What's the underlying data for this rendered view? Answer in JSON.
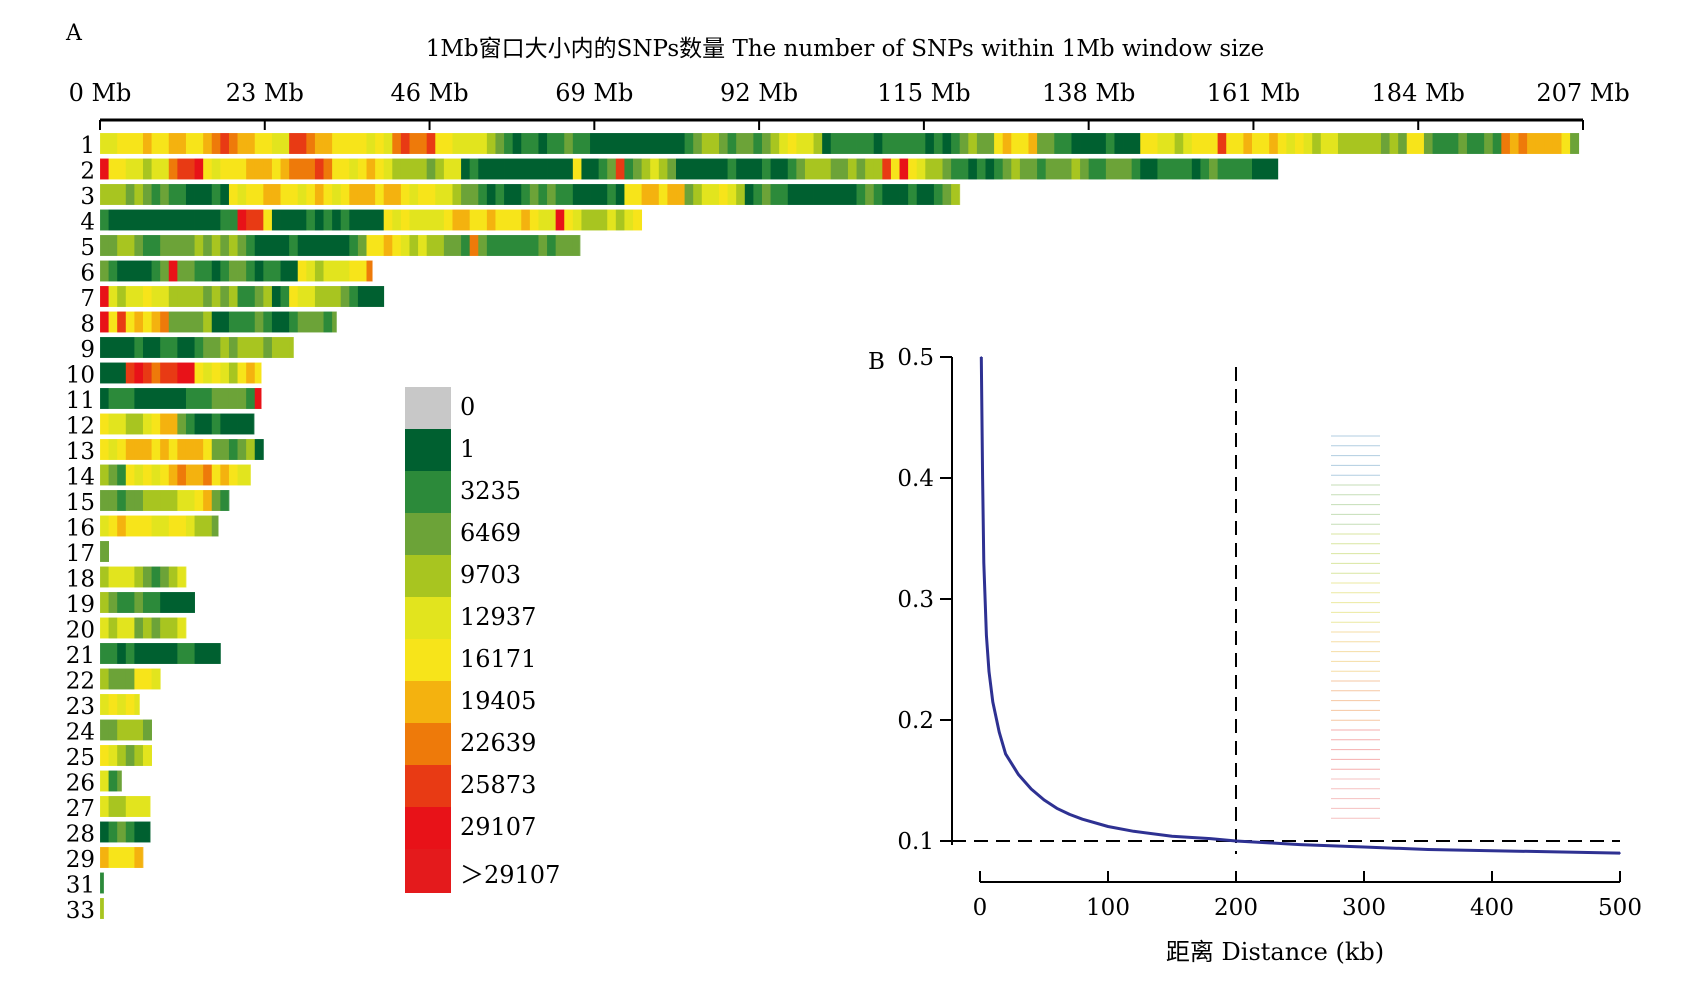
{
  "panel_a": {
    "letter": "A",
    "title": "1Mb窗口大小内的SNPs数量 The number of SNPs within 1Mb window size",
    "chart_data": {
      "type": "heatmap",
      "title": "1Mb窗口大小内的SNPs数量 The number of SNPs within 1Mb window size",
      "x_unit": "Mb",
      "xlim": [
        0,
        207
      ],
      "tick_labels": [
        "0 Mb",
        "23 Mb",
        "46 Mb",
        "69 Mb",
        "92 Mb",
        "115 Mb",
        "138 Mb",
        "161 Mb",
        "184 Mb",
        "207 Mb"
      ],
      "tick_values": [
        0,
        23,
        46,
        69,
        92,
        115,
        138,
        161,
        184,
        207
      ],
      "chromosomes": [
        {
          "label": "1",
          "length_mb": 206.5
        },
        {
          "label": "2",
          "length_mb": 164.5
        },
        {
          "label": "3",
          "length_mb": 120
        },
        {
          "label": "4",
          "length_mb": 76
        },
        {
          "label": "5",
          "length_mb": 67
        },
        {
          "label": "6",
          "length_mb": 38
        },
        {
          "label": "7",
          "length_mb": 40
        },
        {
          "label": "8",
          "length_mb": 33
        },
        {
          "label": "9",
          "length_mb": 27
        },
        {
          "label": "10",
          "length_mb": 22.5
        },
        {
          "label": "11",
          "length_mb": 22.5
        },
        {
          "label": "12",
          "length_mb": 21.5
        },
        {
          "label": "13",
          "length_mb": 23
        },
        {
          "label": "14",
          "length_mb": 21
        },
        {
          "label": "15",
          "length_mb": 18
        },
        {
          "label": "16",
          "length_mb": 16.5
        },
        {
          "label": "17",
          "length_mb": 1.5
        },
        {
          "label": "18",
          "length_mb": 12
        },
        {
          "label": "19",
          "length_mb": 13.5
        },
        {
          "label": "20",
          "length_mb": 12
        },
        {
          "label": "21",
          "length_mb": 17
        },
        {
          "label": "22",
          "length_mb": 8.5
        },
        {
          "label": "23",
          "length_mb": 5.5
        },
        {
          "label": "24",
          "length_mb": 7.5
        },
        {
          "label": "25",
          "length_mb": 7.5
        },
        {
          "label": "26",
          "length_mb": 3
        },
        {
          "label": "27",
          "length_mb": 7
        },
        {
          "label": "28",
          "length_mb": 7
        },
        {
          "label": "29",
          "length_mb": 6
        },
        {
          "label": "31",
          "length_mb": 0.5
        },
        {
          "label": "33",
          "length_mb": 0.5
        }
      ],
      "legend": {
        "labels": [
          "0",
          "1",
          "3235",
          "6469",
          "9703",
          "12937",
          "16171",
          "19405",
          "22639",
          "25873",
          "29107",
          "＞29107"
        ],
        "colors": [
          "#c8c8c8",
          "#006030",
          "#2c8a3a",
          "#6ca338",
          "#a8c520",
          "#e2e41e",
          "#f7e41a",
          "#f4b20f",
          "#ee7a0a",
          "#e83a14",
          "#e81218",
          "#e41a1c"
        ]
      },
      "cell_color_order": [
        "#006030",
        "#2c8a3a",
        "#6ca338",
        "#a8c520",
        "#e2e41e",
        "#f7e41a",
        "#f4b20f",
        "#ee7a0a",
        "#e83a14",
        "#e81218"
      ]
    }
  },
  "panel_b": {
    "letter": "B",
    "xlabel": "距离 Distance (kb)",
    "chart_data": {
      "type": "line",
      "xlabel": "距离 Distance (kb)",
      "ylabel": "",
      "xlim": [
        0,
        500
      ],
      "ylim": [
        0.1,
        0.5
      ],
      "x_ticks": [
        0,
        100,
        200,
        300,
        400,
        500
      ],
      "y_ticks": [
        0.1,
        0.2,
        0.3,
        0.4,
        0.5
      ],
      "x_tick_labels": [
        "0",
        "100",
        "200",
        "300",
        "400",
        "500"
      ],
      "y_tick_labels": [
        "0.1",
        "0.2",
        "0.3",
        "0.4",
        "0.5"
      ],
      "reference_lines": {
        "x": 200,
        "y": 0.1
      },
      "series": [
        {
          "color": "#2e3192",
          "points": [
            [
              1,
              0.5
            ],
            [
              2,
              0.4
            ],
            [
              3,
              0.33
            ],
            [
              5,
              0.27
            ],
            [
              7,
              0.24
            ],
            [
              10,
              0.215
            ],
            [
              15,
              0.19
            ],
            [
              20,
              0.172
            ],
            [
              30,
              0.155
            ],
            [
              40,
              0.143
            ],
            [
              50,
              0.134
            ],
            [
              60,
              0.127
            ],
            [
              70,
              0.122
            ],
            [
              80,
              0.118
            ],
            [
              100,
              0.112
            ],
            [
              120,
              0.108
            ],
            [
              150,
              0.104
            ],
            [
              180,
              0.102
            ],
            [
              200,
              0.1
            ],
            [
              250,
              0.097
            ],
            [
              300,
              0.095
            ],
            [
              350,
              0.093
            ],
            [
              400,
              0.092
            ],
            [
              450,
              0.091
            ],
            [
              500,
              0.09
            ]
          ]
        }
      ]
    }
  }
}
